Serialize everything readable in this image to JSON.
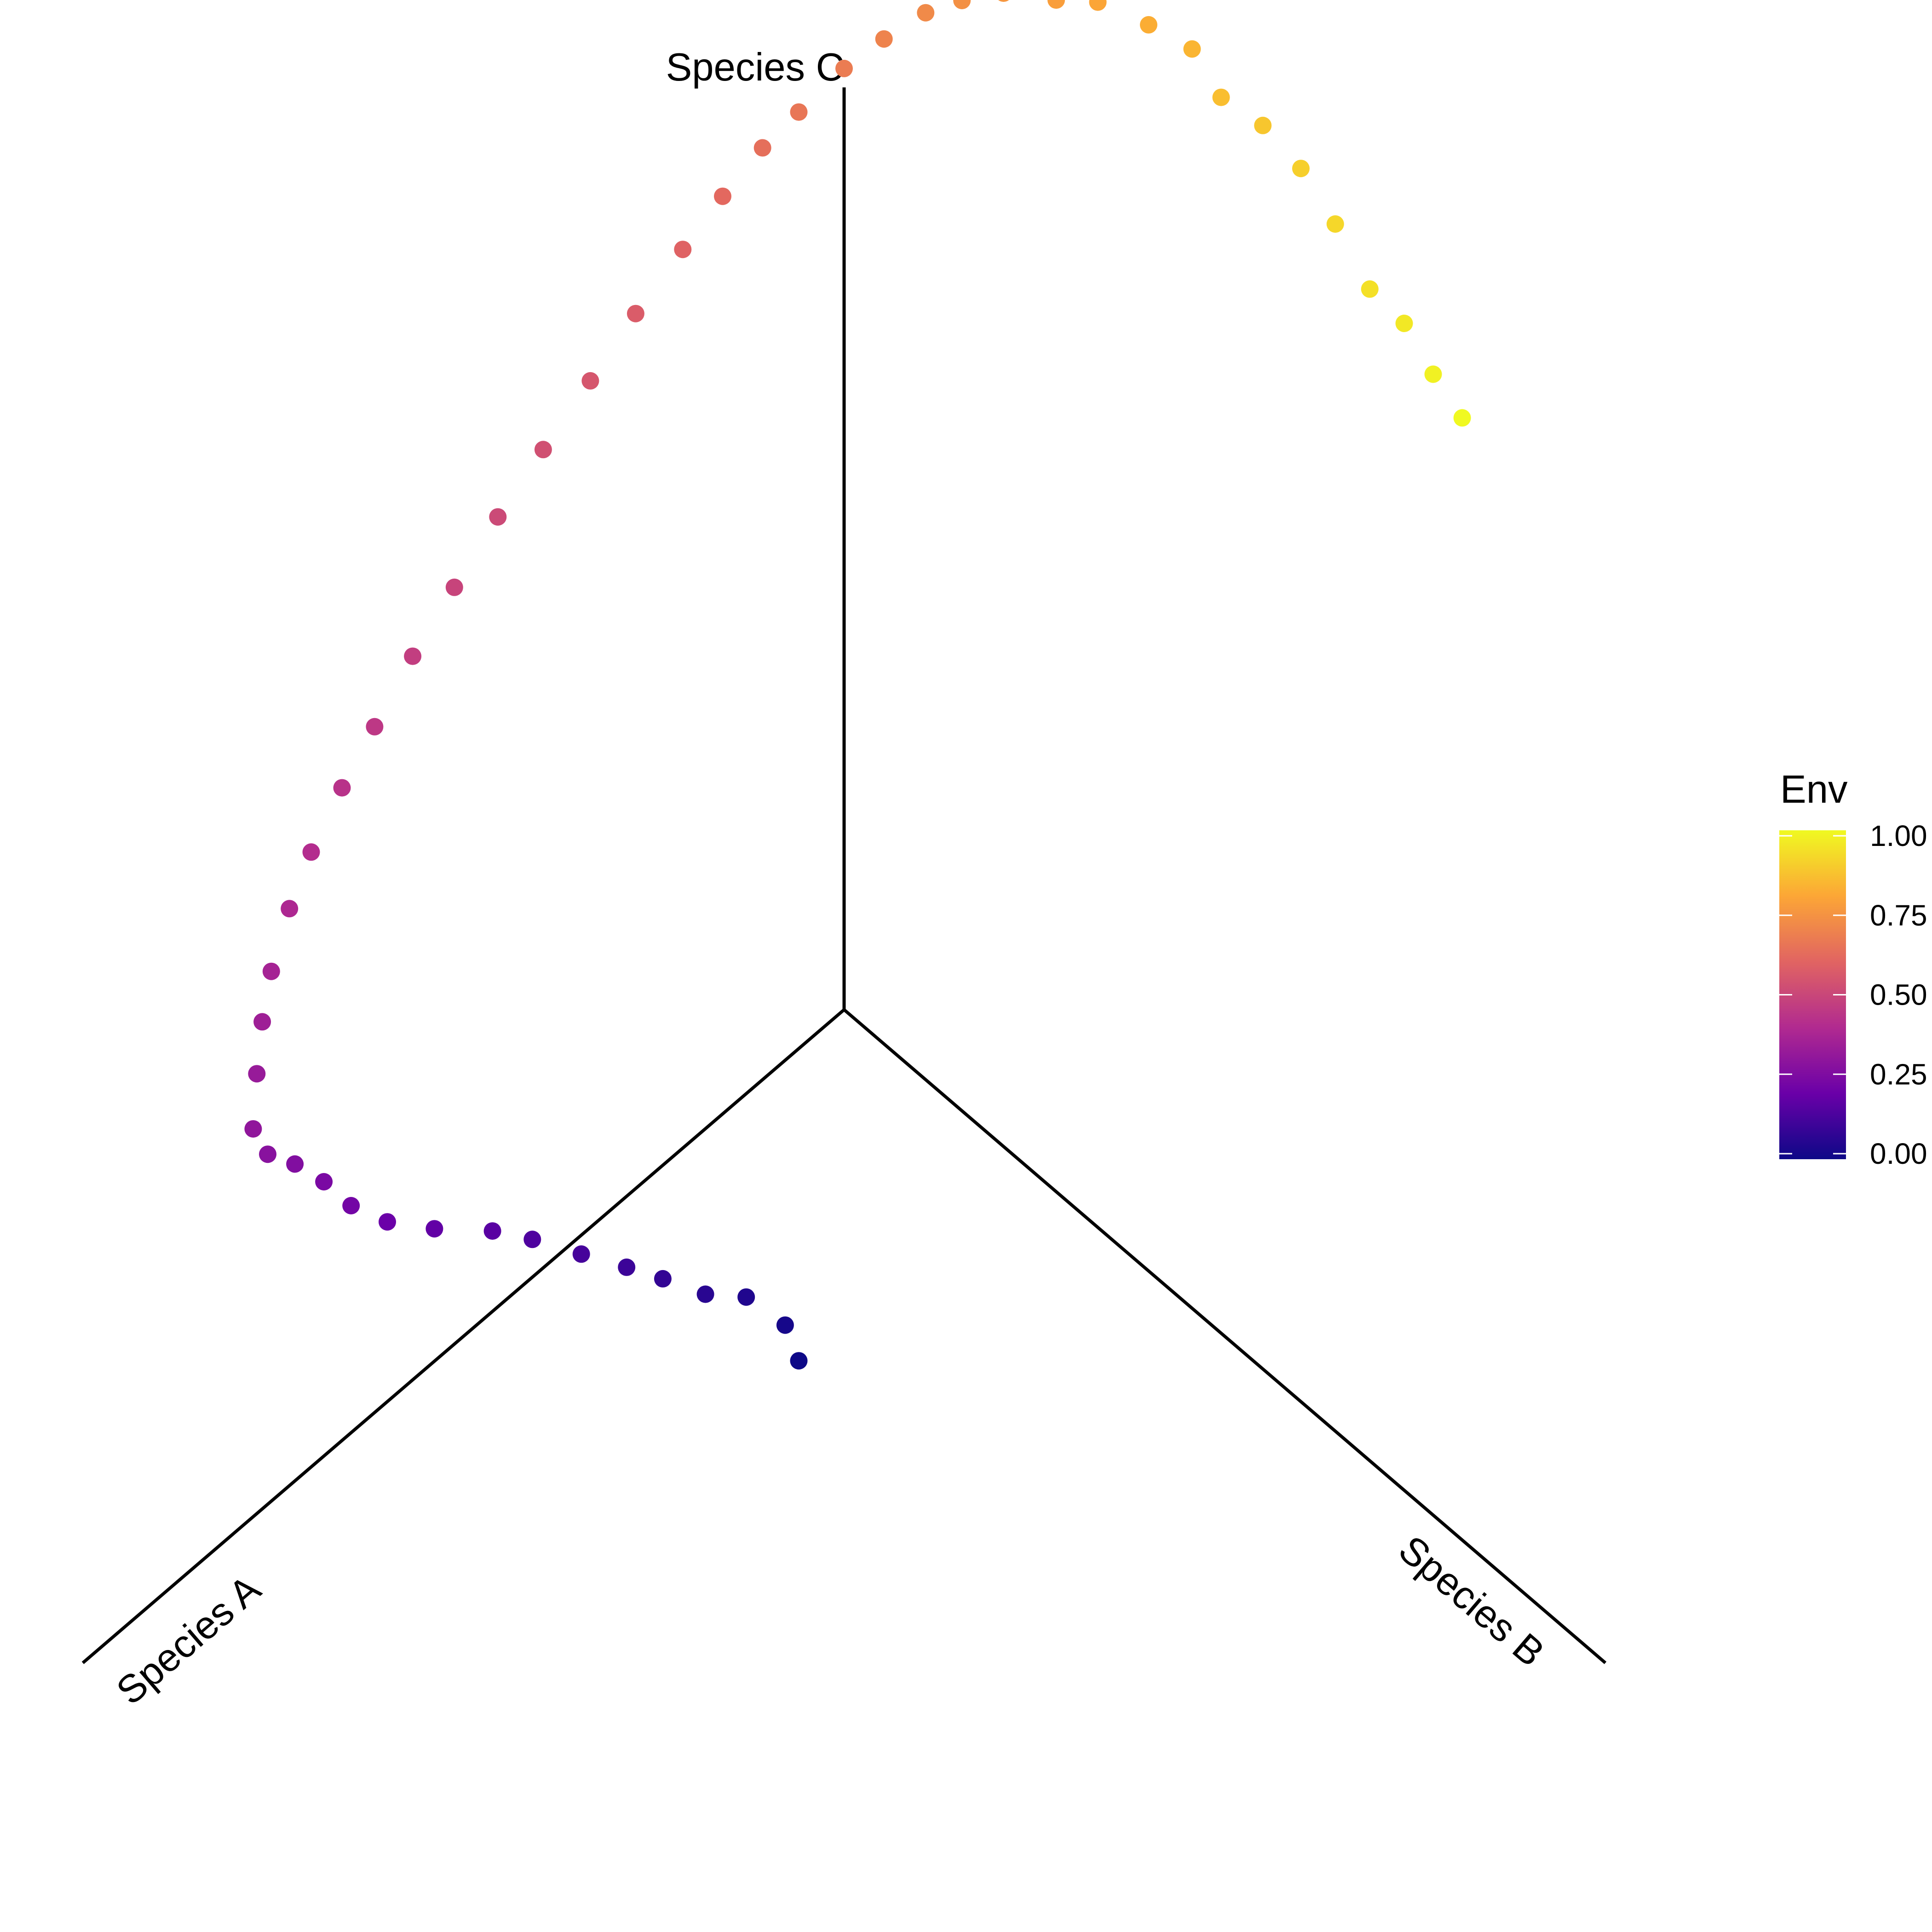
{
  "chart_data": {
    "type": "scatter",
    "title": "",
    "axes": [
      "Species A",
      "Species B",
      "Species C"
    ],
    "color_legend": {
      "title": "Env",
      "range": [
        0,
        1
      ],
      "ticks": [
        "0.00",
        "0.25",
        "0.50",
        "0.75",
        "1.00"
      ],
      "colormap": "plasma",
      "colors": [
        "#0d0887",
        "#6a00a8",
        "#b12a90",
        "#e16462",
        "#fca636",
        "#f0f921"
      ]
    },
    "points": [
      {
        "a": 0.0595,
        "b": -0.3385,
        "c": 0.1667,
        "env": 0.0
      },
      {
        "a": 0.0774,
        "b": -0.2872,
        "c": 0.1667,
        "env": 0.0204
      },
      {
        "a": 0.1286,
        "b": -0.2205,
        "c": 0.1667,
        "env": 0.0408
      },
      {
        "a": 0.1821,
        "b": -0.1795,
        "c": 0.1667,
        "env": 0.0612
      },
      {
        "a": 0.2381,
        "b": -0.1231,
        "c": 0.1667,
        "env": 0.0816
      },
      {
        "a": 0.2857,
        "b": -0.0769,
        "c": 0.1667,
        "env": 0.102
      },
      {
        "a": 0.3452,
        "b": -0.0205,
        "c": 0.1667,
        "env": 0.1224
      },
      {
        "a": 0.4095,
        "b": 0.041,
        "c": 0.1667,
        "env": 0.1429
      },
      {
        "a": 0.4619,
        "b": 0.0872,
        "c": 0.1667,
        "env": 0.1633
      },
      {
        "a": 0.5381,
        "b": 0.1436,
        "c": 0.1667,
        "env": 0.1837
      },
      {
        "a": 0.6,
        "b": 0.1949,
        "c": 0.1667,
        "env": 0.2041
      },
      {
        "a": 0.6476,
        "b": 0.2462,
        "c": 0.1667,
        "env": 0.2245
      },
      {
        "a": 0.6833,
        "b": 0.2974,
        "c": 0.1667,
        "env": 0.2449
      },
      {
        "a": 0.7214,
        "b": 0.3436,
        "c": 0.1667,
        "env": 0.2653
      },
      {
        "a": 0.7571,
        "b": 0.3795,
        "c": 0.1667,
        "env": 0.2857
      },
      {
        "a": 0.7762,
        "b": 0.4205,
        "c": 0.1667,
        "env": 0.3061
      },
      {
        "a": 0.7714,
        "b": 0.4769,
        "c": 0.1667,
        "env": 0.3265
      },
      {
        "a": 0.7643,
        "b": 0.5282,
        "c": 0.1667,
        "env": 0.3469
      },
      {
        "a": 0.7524,
        "b": 0.5744,
        "c": 0.1667,
        "env": 0.3673
      },
      {
        "a": 0.7286,
        "b": 0.6256,
        "c": 0.1667,
        "env": 0.3878
      },
      {
        "a": 0.7,
        "b": 0.6667,
        "c": 0.1667,
        "env": 0.4082
      },
      {
        "a": 0.6595,
        "b": 0.7077,
        "c": 0.1667,
        "env": 0.4286
      },
      {
        "a": 0.6167,
        "b": 0.7436,
        "c": 0.1667,
        "env": 0.449
      },
      {
        "a": 0.5667,
        "b": 0.7846,
        "c": 0.1667,
        "env": 0.4694
      },
      {
        "a": 0.5119,
        "b": 0.8205,
        "c": 0.1667,
        "env": 0.4898
      },
      {
        "a": 0.4548,
        "b": 0.8564,
        "c": 0.1667,
        "env": 0.5102
      },
      {
        "a": 0.3952,
        "b": 0.8872,
        "c": 0.1667,
        "env": 0.5306
      },
      {
        "a": 0.3333,
        "b": 0.9179,
        "c": 0.1667,
        "env": 0.551
      },
      {
        "a": 0.2738,
        "b": 0.9487,
        "c": 0.1667,
        "env": 0.5714
      },
      {
        "a": 0.2119,
        "b": 0.9744,
        "c": 0.1667,
        "env": 0.5918
      },
      {
        "a": 0.1595,
        "b": 0.9949,
        "c": 0.1667,
        "env": 0.6122
      },
      {
        "a": 0.1071,
        "b": 1.0103,
        "c": 0.1667,
        "env": 0.6327
      },
      {
        "a": 0.0595,
        "b": 1.0154,
        "c": 0.1667,
        "env": 0.6531
      },
      {
        "a": 0.0,
        "b": 1.0205,
        "c": 0.1667,
        "env": 0.6735
      },
      {
        "a": -0.0524,
        "b": 1.0154,
        "c": 0.1667,
        "env": 0.6939
      },
      {
        "a": -0.1071,
        "b": 1.0051,
        "c": 0.1667,
        "env": 0.7143
      },
      {
        "a": -0.1548,
        "b": 0.9846,
        "c": 0.1667,
        "env": 0.7347
      },
      {
        "a": -0.2095,
        "b": 0.9538,
        "c": 0.1667,
        "env": 0.7551
      },
      {
        "a": -0.2786,
        "b": 0.8974,
        "c": 0.1667,
        "env": 0.7755
      },
      {
        "a": -0.3333,
        "b": 0.8564,
        "c": 0.1667,
        "env": 0.7959
      },
      {
        "a": -0.4,
        "b": 0.7846,
        "c": 0.1667,
        "env": 0.8163
      },
      {
        "a": -0.4571,
        "b": 0.7179,
        "c": 0.1667,
        "env": 0.8367
      },
      {
        "a": -0.4952,
        "b": 0.6385,
        "c": 0.1667,
        "env": 0.8571
      },
      {
        "a": -0.55,
        "b": 0.5692,
        "c": 0.1667,
        "env": 0.8776
      },
      {
        "a": -0.6,
        "b": 0.4872,
        "c": 0.1667,
        "env": 0.898
      },
      {
        "a": -0.6452,
        "b": 0.3949,
        "c": 0.1667,
        "env": 0.9184
      },
      {
        "a": -0.6905,
        "b": 0.2923,
        "c": 0.1667,
        "env": 0.9388
      },
      {
        "a": -0.7357,
        "b": 0.2231,
        "c": 0.1667,
        "env": 0.9592
      },
      {
        "a": -0.7738,
        "b": 0.141,
        "c": 0.1667,
        "env": 0.9796
      },
      {
        "a": -0.8119,
        "b": 0.0667,
        "c": 0.1667,
        "env": 1.0
      }
    ]
  }
}
